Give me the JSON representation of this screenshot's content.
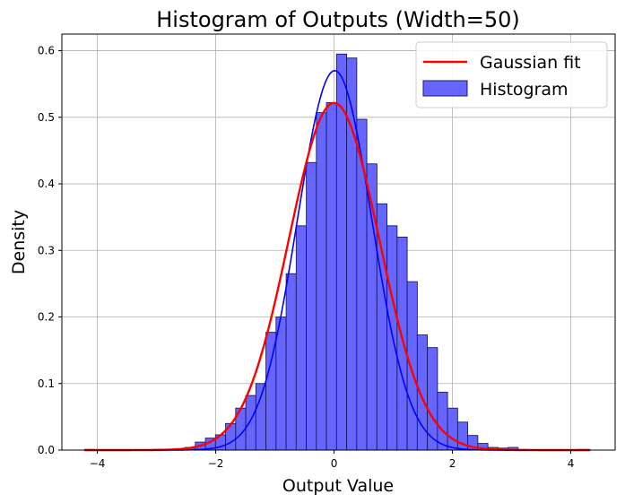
{
  "chart_data": {
    "type": "histogram",
    "title": "Histogram of Outputs (Width=50)",
    "xlabel": "Output Value",
    "ylabel": "Density",
    "xlim": [
      -4.6,
      4.75
    ],
    "ylim": [
      0,
      0.625
    ],
    "x_ticks": [
      -4,
      -2,
      0,
      2,
      4
    ],
    "x_tick_labels": [
      "−4",
      "−2",
      "0",
      "2",
      "4"
    ],
    "y_ticks": [
      0.0,
      0.1,
      0.2,
      0.3,
      0.4,
      0.5,
      0.6
    ],
    "y_tick_labels": [
      "0.0",
      "0.1",
      "0.2",
      "0.3",
      "0.4",
      "0.5",
      "0.6"
    ],
    "grid": true,
    "legend_position": "top-right",
    "colors": {
      "bar_fill": "#6666ff",
      "bar_edge": "#1a1a66",
      "kde_line": "#0000ff",
      "gaussian_line": "#ff0000",
      "grid": "#b0b0b0"
    },
    "bin_width": 0.1705,
    "bins": [
      {
        "x0": -4.22,
        "y": 0.001
      },
      {
        "x0": -4.05,
        "y": 0.0
      },
      {
        "x0": -3.879,
        "y": 0.0
      },
      {
        "x0": -3.709,
        "y": 0.0
      },
      {
        "x0": -3.538,
        "y": 0.0
      },
      {
        "x0": -3.368,
        "y": 0.0
      },
      {
        "x0": -3.197,
        "y": 0.0
      },
      {
        "x0": -3.027,
        "y": 0.001
      },
      {
        "x0": -2.856,
        "y": 0.001
      },
      {
        "x0": -2.686,
        "y": 0.002
      },
      {
        "x0": -2.515,
        "y": 0.004
      },
      {
        "x0": -2.345,
        "y": 0.012
      },
      {
        "x0": -2.174,
        "y": 0.018
      },
      {
        "x0": -2.004,
        "y": 0.023
      },
      {
        "x0": -1.833,
        "y": 0.04
      },
      {
        "x0": -1.663,
        "y": 0.063
      },
      {
        "x0": -1.492,
        "y": 0.082
      },
      {
        "x0": -1.322,
        "y": 0.1
      },
      {
        "x0": -1.151,
        "y": 0.177
      },
      {
        "x0": -0.981,
        "y": 0.2
      },
      {
        "x0": -0.81,
        "y": 0.265
      },
      {
        "x0": -0.64,
        "y": 0.337
      },
      {
        "x0": -0.469,
        "y": 0.432
      },
      {
        "x0": -0.299,
        "y": 0.507
      },
      {
        "x0": -0.128,
        "y": 0.522
      },
      {
        "x0": 0.042,
        "y": 0.595
      },
      {
        "x0": 0.213,
        "y": 0.589
      },
      {
        "x0": 0.383,
        "y": 0.497
      },
      {
        "x0": 0.554,
        "y": 0.43
      },
      {
        "x0": 0.724,
        "y": 0.37
      },
      {
        "x0": 0.895,
        "y": 0.337
      },
      {
        "x0": 1.065,
        "y": 0.32
      },
      {
        "x0": 1.236,
        "y": 0.253
      },
      {
        "x0": 1.406,
        "y": 0.173
      },
      {
        "x0": 1.577,
        "y": 0.154
      },
      {
        "x0": 1.747,
        "y": 0.087
      },
      {
        "x0": 1.918,
        "y": 0.063
      },
      {
        "x0": 2.088,
        "y": 0.042
      },
      {
        "x0": 2.259,
        "y": 0.022
      },
      {
        "x0": 2.429,
        "y": 0.01
      },
      {
        "x0": 2.6,
        "y": 0.004
      },
      {
        "x0": 2.77,
        "y": 0.003
      },
      {
        "x0": 2.941,
        "y": 0.004
      },
      {
        "x0": 3.111,
        "y": 0.001
      },
      {
        "x0": 3.282,
        "y": 0.0
      },
      {
        "x0": 3.452,
        "y": 0.0
      },
      {
        "x0": 3.623,
        "y": 0.0
      },
      {
        "x0": 3.793,
        "y": 0.0
      },
      {
        "x0": 3.964,
        "y": 0.0
      },
      {
        "x0": 4.134,
        "y": 0.001
      }
    ],
    "kde": {
      "label": "",
      "sigma": 0.63,
      "amplitude": 0.57,
      "mu": 0.01,
      "x_range": [
        -4.22,
        4.33
      ]
    },
    "series": [
      {
        "name": "Gaussian fit",
        "type": "line",
        "mu": 0.0,
        "sigma": 0.765,
        "x_range": [
          -4.22,
          4.33
        ]
      },
      {
        "name": "Histogram",
        "type": "bar"
      }
    ]
  }
}
